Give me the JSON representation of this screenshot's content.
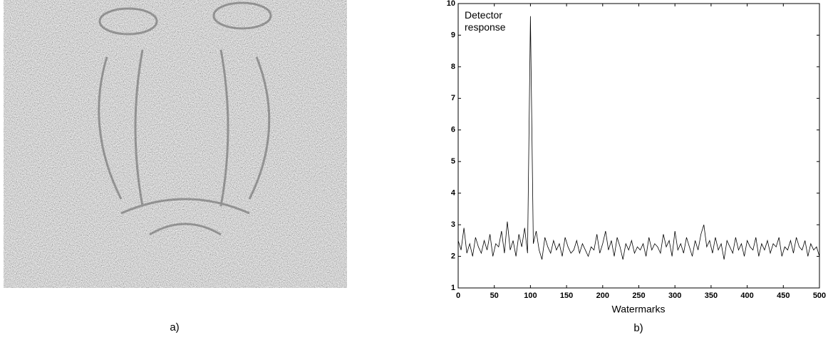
{
  "captions": {
    "a": "a)",
    "b": "b)"
  },
  "chart_data": {
    "type": "line",
    "annotation": "Detector response",
    "xlabel": "Watermarks",
    "color": "#000000",
    "xlim": [
      0,
      500
    ],
    "xticks": [
      0,
      50,
      100,
      150,
      200,
      250,
      300,
      350,
      400,
      450,
      500
    ],
    "ylim": [
      1,
      10
    ],
    "yticks": [
      1,
      2,
      3,
      4,
      5,
      6,
      7,
      8,
      9,
      10
    ],
    "x": [
      0,
      4,
      8,
      12,
      16,
      20,
      24,
      28,
      32,
      36,
      40,
      44,
      48,
      52,
      56,
      60,
      64,
      68,
      72,
      76,
      80,
      84,
      88,
      92,
      96,
      100,
      104,
      108,
      112,
      116,
      120,
      124,
      128,
      132,
      136,
      140,
      144,
      148,
      152,
      156,
      160,
      164,
      168,
      172,
      176,
      180,
      184,
      188,
      192,
      196,
      200,
      204,
      208,
      212,
      216,
      220,
      224,
      228,
      232,
      236,
      240,
      244,
      248,
      252,
      256,
      260,
      264,
      268,
      272,
      276,
      280,
      284,
      288,
      292,
      296,
      300,
      304,
      308,
      312,
      316,
      320,
      324,
      328,
      332,
      336,
      340,
      344,
      348,
      352,
      356,
      360,
      364,
      368,
      372,
      376,
      380,
      384,
      388,
      392,
      396,
      400,
      404,
      408,
      412,
      416,
      420,
      424,
      428,
      432,
      436,
      440,
      444,
      448,
      452,
      456,
      460,
      464,
      468,
      472,
      476,
      480,
      484,
      488,
      492,
      496,
      500
    ],
    "values": [
      2.5,
      2.2,
      2.9,
      2.1,
      2.4,
      2.0,
      2.6,
      2.3,
      2.1,
      2.5,
      2.2,
      2.7,
      2.0,
      2.4,
      2.3,
      2.8,
      2.1,
      3.1,
      2.2,
      2.5,
      2.0,
      2.7,
      2.3,
      2.9,
      2.1,
      9.6,
      2.4,
      2.8,
      2.2,
      1.9,
      2.6,
      2.3,
      2.1,
      2.5,
      2.2,
      2.4,
      2.0,
      2.6,
      2.3,
      2.1,
      2.2,
      2.5,
      2.1,
      2.4,
      2.2,
      2.0,
      2.3,
      2.2,
      2.7,
      2.1,
      2.4,
      2.8,
      2.2,
      2.5,
      2.0,
      2.6,
      2.3,
      1.9,
      2.4,
      2.2,
      2.5,
      2.1,
      2.3,
      2.2,
      2.4,
      2.0,
      2.6,
      2.2,
      2.4,
      2.3,
      2.1,
      2.7,
      2.3,
      2.5,
      2.0,
      2.8,
      2.2,
      2.4,
      2.1,
      2.6,
      2.3,
      2.0,
      2.5,
      2.2,
      2.7,
      3.0,
      2.3,
      2.5,
      2.1,
      2.6,
      2.2,
      2.4,
      1.9,
      2.5,
      2.3,
      2.1,
      2.6,
      2.2,
      2.4,
      2.0,
      2.5,
      2.3,
      2.2,
      2.6,
      2.0,
      2.4,
      2.2,
      2.5,
      2.1,
      2.4,
      2.3,
      2.6,
      2.0,
      2.3,
      2.2,
      2.5,
      2.1,
      2.6,
      2.3,
      2.2,
      2.5,
      2.0,
      2.4,
      2.2,
      2.3,
      2.0
    ]
  }
}
